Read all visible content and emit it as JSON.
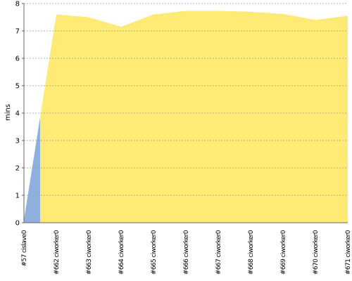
{
  "chart_data": {
    "type": "area",
    "y_label": "mins",
    "categories": [
      "#57 cislave0",
      "#662 ciworker0",
      "#663 ciworker0",
      "#664 ciworker0",
      "#665 ciworker0",
      "#666 ciworker0",
      "#667 ciworker0",
      "#668 ciworker0",
      "#669 ciworker0",
      "#670 ciworker0",
      "#671 ciworker0"
    ],
    "values": [
      0.1,
      7.6,
      7.5,
      7.15,
      7.6,
      7.73,
      7.73,
      7.7,
      7.62,
      7.4,
      7.55
    ],
    "colors": [
      "#8fb0dc",
      "#feea74",
      "#feea74",
      "#feea74",
      "#feea74",
      "#feea74",
      "#feea74",
      "#feea74",
      "#feea74",
      "#feea74",
      "#feea74"
    ],
    "ylim": [
      0,
      8
    ],
    "yticks": [
      0,
      1,
      2,
      3,
      4,
      5,
      6,
      7,
      8
    ],
    "grid": true
  }
}
